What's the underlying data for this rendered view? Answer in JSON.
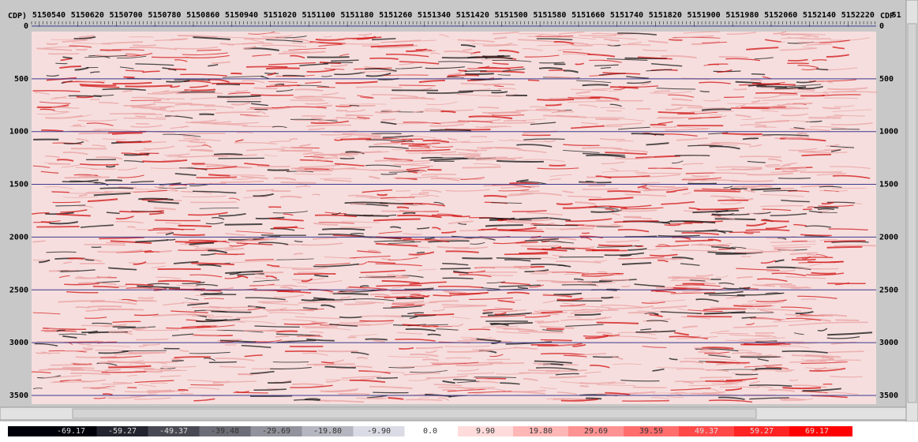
{
  "top_axis": {
    "label_left": "CDP)",
    "labels": [
      "5150540",
      "5150620",
      "5150700",
      "5150780",
      "5150860",
      "5150940",
      "5151020",
      "5151100",
      "5151180",
      "5151260",
      "5151340",
      "5151420",
      "5151500",
      "5151580",
      "5151660",
      "5151740",
      "5151820",
      "5151900",
      "5151980",
      "5152060",
      "5152140",
      "5152220",
      "51"
    ],
    "label_right": "CDP"
  },
  "depth_axis": {
    "ticks": [
      0,
      500,
      1000,
      1500,
      2000,
      2500,
      3000,
      3500
    ]
  },
  "colorbar": {
    "labels": [
      "-69.17",
      "-59.27",
      "-49.37",
      "-39.48",
      "-29.69",
      "-19.80",
      "-9.90",
      "0.0",
      "9.90",
      "19.80",
      "29.69",
      "39.59",
      "49.37",
      "59.27",
      "69.17"
    ]
  }
}
